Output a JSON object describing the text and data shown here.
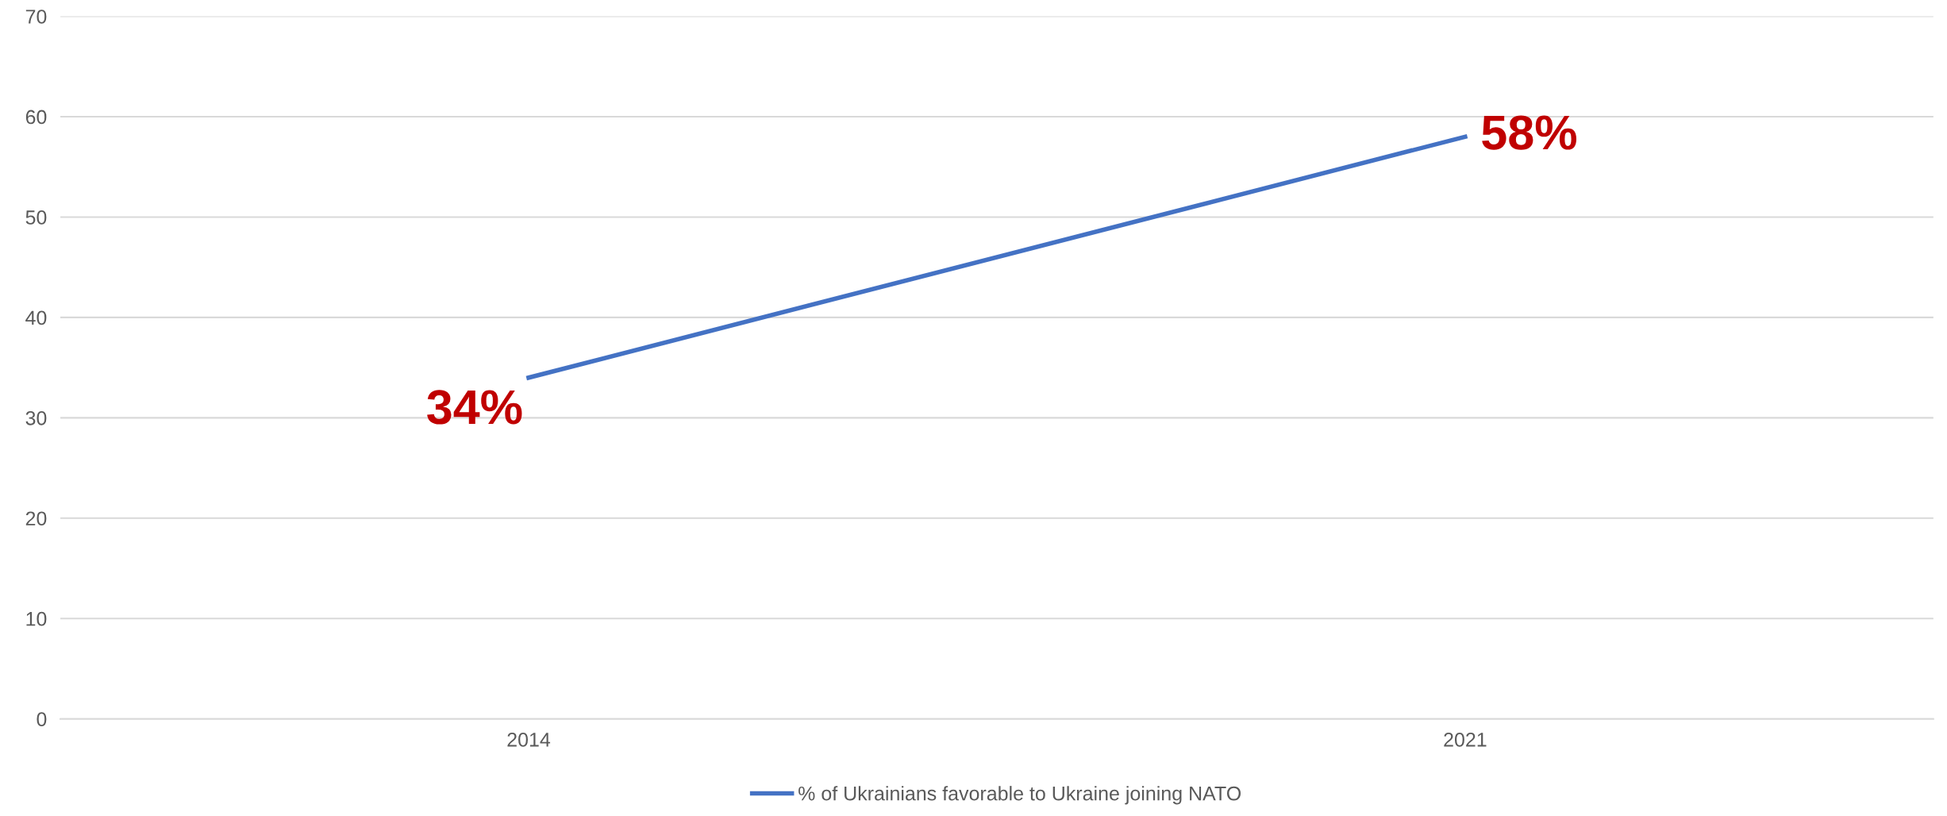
{
  "chart_data": {
    "type": "line",
    "categories": [
      "2014",
      "2021"
    ],
    "series": [
      {
        "name": "% of Ukrainians favorable to Ukraine joining NATO",
        "color": "#4472c4",
        "values": [
          34,
          58
        ],
        "value_labels": [
          "34%",
          "58%"
        ]
      }
    ],
    "ylim": [
      0,
      70
    ],
    "yticks": [
      0,
      10,
      20,
      30,
      40,
      50,
      60,
      70
    ],
    "grid": "y",
    "legend": "bottom",
    "marker": "none",
    "line_style": "solid"
  }
}
